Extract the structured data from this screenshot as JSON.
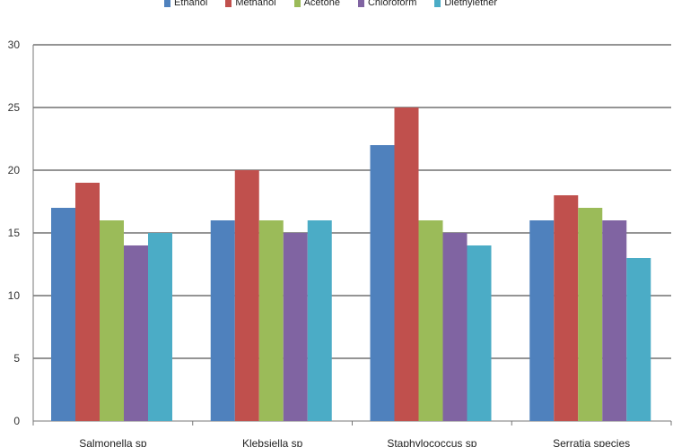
{
  "chart_data": {
    "type": "bar",
    "categories": [
      "Salmonella sp",
      "Klebsiella sp",
      "Staphylococcus sp",
      "Serratia species"
    ],
    "series": [
      {
        "name": "Ethanol",
        "color": "#4f81bd",
        "values": [
          17,
          16,
          22,
          16
        ]
      },
      {
        "name": "Methanol",
        "color": "#c0504d",
        "values": [
          19,
          20,
          25,
          18
        ]
      },
      {
        "name": "Acetone",
        "color": "#9bbb59",
        "values": [
          16,
          16,
          16,
          17
        ]
      },
      {
        "name": "Chloroform",
        "color": "#8064a2",
        "values": [
          14,
          15,
          15,
          16
        ]
      },
      {
        "name": "Diethylether",
        "color": "#4bacc6",
        "values": [
          15,
          16,
          14,
          13
        ]
      }
    ],
    "yticks": [
      0,
      5,
      10,
      15,
      20,
      25,
      30
    ],
    "ylim": [
      0,
      30
    ],
    "grid": true,
    "legend": "top"
  }
}
